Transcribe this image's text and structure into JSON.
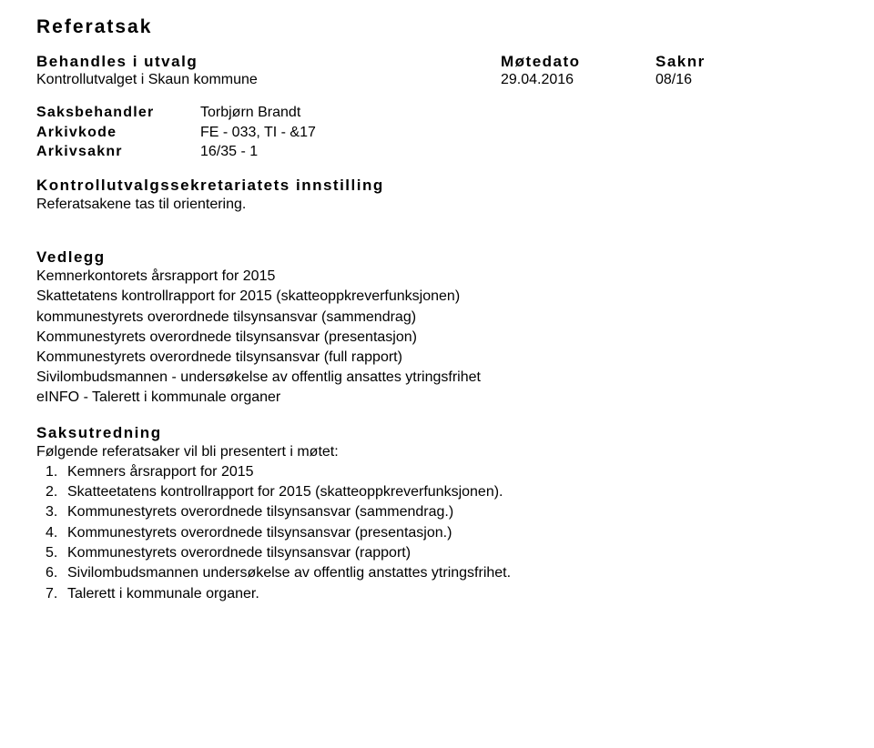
{
  "title": "Referatsak",
  "meetingHeader": {
    "col1": "Behandles i utvalg",
    "col2": "Møtedato",
    "col3": "Saknr"
  },
  "meetingRow": {
    "col1": "Kontrollutvalget i Skaun kommune",
    "col2": "29.04.2016",
    "col3": "08/16"
  },
  "info": {
    "saksbehandler_label": "Saksbehandler",
    "saksbehandler_value": "Torbjørn Brandt",
    "arkivkode_label": "Arkivkode",
    "arkivkode_value": "FE - 033, TI - &17",
    "arkivsaknr_label": "Arkivsaknr",
    "arkivsaknr_value": "16/35 - 1"
  },
  "innstilling_head": "Kontrollutvalgssekretariatets innstilling",
  "innstilling_text": "Referatsakene tas til orientering.",
  "vedlegg_head": "Vedlegg",
  "vedlegg_items": [
    "Kemnerkontorets årsrapport for 2015",
    "Skattetatens kontrollrapport for 2015 (skatteoppkreverfunksjonen)",
    "kommunestyrets overordnede tilsynsansvar (sammendrag)",
    "Kommunestyrets overordnede tilsynsansvar (presentasjon)",
    "Kommunestyrets overordnede tilsynsansvar (full rapport)",
    "Sivilombudsmannen - undersøkelse av offentlig ansattes ytringsfrihet",
    "eINFO - Talerett i kommunale organer"
  ],
  "saksutredning_head": "Saksutredning",
  "saksutredning_intro": "Følgende referatsaker vil bli presentert i møtet:",
  "saksutredning_items": [
    "Kemners årsrapport for 2015",
    "Skatteetatens kontrollrapport for 2015 (skatteoppkreverfunksjonen).",
    "Kommunestyrets overordnede tilsynsansvar (sammendrag.)",
    "Kommunestyrets overordnede tilsynsansvar (presentasjon.)",
    "Kommunestyrets overordnede tilsynsansvar (rapport)",
    "Sivilombudsmannen undersøkelse av offentlig anstattes ytringsfrihet.",
    "Talerett i kommunale organer."
  ]
}
